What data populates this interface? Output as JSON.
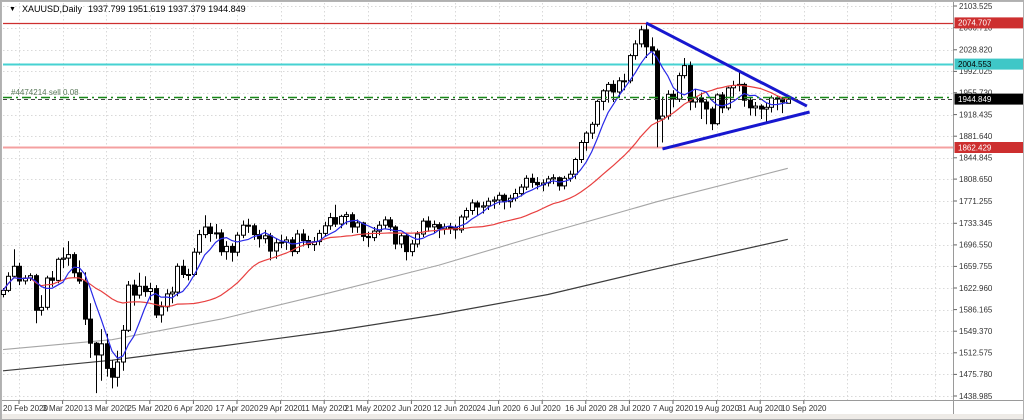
{
  "window": {
    "marker": "▼",
    "symbol_period": "XAUUSD,Daily",
    "ohlc_line": "1937.799 1951.619 1937.379 1944.849"
  },
  "position": {
    "label": "#4474214 sell 0.08",
    "open_price": 1948.0
  },
  "colors": {
    "background": "#ffffff",
    "grid": "#d9d9d9",
    "axis_text": "#333333",
    "frame": "#9a9a9a",
    "bull_fill": "#ffffff",
    "bear_fill": "#000000",
    "candle_outline": "#000000",
    "ma_fast_blue": "#2929e8",
    "ma_mid_red": "#e84040",
    "ma_slow_gray": "#a6a6a6",
    "ma_slowest_black": "#3c3c3c",
    "triangle_blue": "#1717cf",
    "resistance_red": "#cd2f2f",
    "support_pink": "#f4a0a0",
    "cyan_level": "#46d2d2",
    "position_green": "#178717",
    "bid_line": "#444444",
    "badge_black": "#000000",
    "bottom_strip": "#eeebe7"
  },
  "chart_data": {
    "type": "candlestick",
    "title": "XAUUSD Daily with moving averages and symmetrical triangle",
    "symbol": "XAUUSD",
    "timeframe": "Daily",
    "current_bar": {
      "open": 1937.799,
      "high": 1951.619,
      "low": 1937.379,
      "close": 1944.849
    },
    "x_labels": [
      "20 Feb 2020",
      "3 Mar 2020",
      "13 Mar 2020",
      "25 Mar 2020",
      "6 Apr 2020",
      "17 Apr 2020",
      "29 Apr 2020",
      "11 May 2020",
      "21 May 2020",
      "2 Jun 2020",
      "12 Jun 2020",
      "24 Jun 2020",
      "6 Jul 2020",
      "16 Jul 2020",
      "28 Jul 2020",
      "7 Aug 2020",
      "19 Aug 2020",
      "31 Aug 2020",
      "10 Sep 2020"
    ],
    "y_ticks": [
      2103.525,
      2066.71,
      2028.82,
      1992.025,
      1955.73,
      1918.435,
      1881.64,
      1844.845,
      1808.65,
      1771.255,
      1733.345,
      1696.55,
      1659.755,
      1622.96,
      1586.165,
      1549.37,
      1512.575,
      1475.78,
      1438.985
    ],
    "ylim": [
      1438.985,
      2103.525
    ],
    "grid": "dotted",
    "candles": [
      [
        1612,
        1623,
        1607,
        1619
      ],
      [
        1619,
        1650,
        1616,
        1643
      ],
      [
        1643,
        1689,
        1642,
        1660
      ],
      [
        1660,
        1666,
        1628,
        1635
      ],
      [
        1635,
        1645,
        1629,
        1640
      ],
      [
        1640,
        1648,
        1635,
        1644
      ],
      [
        1644,
        1647,
        1563,
        1585
      ],
      [
        1585,
        1611,
        1576,
        1590
      ],
      [
        1590,
        1644,
        1586,
        1640
      ],
      [
        1640,
        1652,
        1625,
        1636
      ],
      [
        1636,
        1675,
        1631,
        1672
      ],
      [
        1672,
        1692,
        1657,
        1674
      ],
      [
        1674,
        1703,
        1661,
        1680
      ],
      [
        1680,
        1684,
        1641,
        1649
      ],
      [
        1649,
        1670,
        1630,
        1635
      ],
      [
        1635,
        1650,
        1560,
        1570
      ],
      [
        1570,
        1597,
        1504,
        1529
      ],
      [
        1529,
        1531,
        1444,
        1509
      ],
      [
        1509,
        1553,
        1465,
        1528
      ],
      [
        1528,
        1545,
        1472,
        1486
      ],
      [
        1486,
        1500,
        1452,
        1471
      ],
      [
        1471,
        1516,
        1455,
        1497
      ],
      [
        1497,
        1560,
        1482,
        1551
      ],
      [
        1551,
        1635,
        1548,
        1628
      ],
      [
        1628,
        1637,
        1593,
        1611
      ],
      [
        1611,
        1649,
        1605,
        1626
      ],
      [
        1626,
        1643,
        1608,
        1617
      ],
      [
        1617,
        1632,
        1602,
        1622
      ],
      [
        1622,
        1628,
        1572,
        1577
      ],
      [
        1577,
        1600,
        1564,
        1591
      ],
      [
        1591,
        1621,
        1583,
        1613
      ],
      [
        1613,
        1625,
        1597,
        1616
      ],
      [
        1616,
        1665,
        1609,
        1660
      ],
      [
        1660,
        1671,
        1640,
        1646
      ],
      [
        1646,
        1656,
        1636,
        1646
      ],
      [
        1646,
        1691,
        1643,
        1684
      ],
      [
        1684,
        1722,
        1680,
        1714
      ],
      [
        1714,
        1747,
        1708,
        1727
      ],
      [
        1727,
        1734,
        1702,
        1716
      ],
      [
        1716,
        1732,
        1707,
        1717
      ],
      [
        1717,
        1723,
        1678,
        1685
      ],
      [
        1685,
        1703,
        1671,
        1694
      ],
      [
        1694,
        1699,
        1668,
        1684
      ],
      [
        1684,
        1718,
        1677,
        1713
      ],
      [
        1713,
        1738,
        1708,
        1730
      ],
      [
        1730,
        1741,
        1717,
        1729
      ],
      [
        1729,
        1733,
        1705,
        1714
      ],
      [
        1714,
        1722,
        1692,
        1707
      ],
      [
        1707,
        1722,
        1699,
        1712
      ],
      [
        1712,
        1717,
        1670,
        1686
      ],
      [
        1686,
        1708,
        1673,
        1700
      ],
      [
        1700,
        1714,
        1691,
        1701
      ],
      [
        1701,
        1711,
        1688,
        1705
      ],
      [
        1705,
        1710,
        1677,
        1685
      ],
      [
        1685,
        1722,
        1681,
        1715
      ],
      [
        1715,
        1723,
        1694,
        1704
      ],
      [
        1704,
        1712,
        1691,
        1697
      ],
      [
        1697,
        1710,
        1686,
        1702
      ],
      [
        1702,
        1722,
        1696,
        1716
      ],
      [
        1716,
        1736,
        1711,
        1729
      ],
      [
        1729,
        1751,
        1722,
        1743
      ],
      [
        1743,
        1765,
        1727,
        1732
      ],
      [
        1732,
        1748,
        1725,
        1745
      ],
      [
        1745,
        1753,
        1731,
        1748
      ],
      [
        1748,
        1752,
        1717,
        1727
      ],
      [
        1727,
        1740,
        1717,
        1734
      ],
      [
        1734,
        1736,
        1703,
        1711
      ],
      [
        1711,
        1719,
        1693,
        1709
      ],
      [
        1709,
        1727,
        1703,
        1720
      ],
      [
        1720,
        1737,
        1713,
        1730
      ],
      [
        1730,
        1745,
        1723,
        1739
      ],
      [
        1739,
        1744,
        1720,
        1727
      ],
      [
        1727,
        1730,
        1689,
        1698
      ],
      [
        1698,
        1717,
        1691,
        1712
      ],
      [
        1712,
        1715,
        1670,
        1685
      ],
      [
        1685,
        1705,
        1677,
        1698
      ],
      [
        1698,
        1720,
        1692,
        1715
      ],
      [
        1715,
        1742,
        1710,
        1737
      ],
      [
        1737,
        1745,
        1719,
        1727
      ],
      [
        1727,
        1738,
        1716,
        1731
      ],
      [
        1731,
        1735,
        1708,
        1724
      ],
      [
        1724,
        1733,
        1714,
        1727
      ],
      [
        1727,
        1734,
        1715,
        1727
      ],
      [
        1727,
        1731,
        1707,
        1722
      ],
      [
        1722,
        1748,
        1717,
        1744
      ],
      [
        1744,
        1760,
        1739,
        1755
      ],
      [
        1755,
        1774,
        1748,
        1768
      ],
      [
        1768,
        1772,
        1747,
        1761
      ],
      [
        1761,
        1770,
        1750,
        1763
      ],
      [
        1763,
        1777,
        1756,
        1771
      ],
      [
        1771,
        1779,
        1758,
        1773
      ],
      [
        1773,
        1786,
        1765,
        1781
      ],
      [
        1781,
        1784,
        1757,
        1770
      ],
      [
        1770,
        1782,
        1760,
        1776
      ],
      [
        1776,
        1792,
        1771,
        1784
      ],
      [
        1784,
        1800,
        1779,
        1795
      ],
      [
        1795,
        1815,
        1790,
        1810
      ],
      [
        1810,
        1818,
        1794,
        1803
      ],
      [
        1803,
        1812,
        1791,
        1799
      ],
      [
        1799,
        1808,
        1788,
        1802
      ],
      [
        1802,
        1814,
        1796,
        1809
      ],
      [
        1809,
        1817,
        1800,
        1811
      ],
      [
        1811,
        1813,
        1789,
        1797
      ],
      [
        1797,
        1814,
        1791,
        1810
      ],
      [
        1810,
        1823,
        1804,
        1817
      ],
      [
        1817,
        1845,
        1809,
        1842
      ],
      [
        1842,
        1875,
        1836,
        1871
      ],
      [
        1871,
        1890,
        1857,
        1887
      ],
      [
        1887,
        1906,
        1877,
        1902
      ],
      [
        1902,
        1944,
        1898,
        1941
      ],
      [
        1941,
        1962,
        1926,
        1959
      ],
      [
        1959,
        1974,
        1939,
        1970
      ],
      [
        1970,
        1977,
        1940,
        1957
      ],
      [
        1957,
        1982,
        1947,
        1976
      ],
      [
        1976,
        1988,
        1960,
        1976
      ],
      [
        1976,
        2022,
        1972,
        2019
      ],
      [
        2019,
        2045,
        2012,
        2039
      ],
      [
        2039,
        2070,
        2033,
        2063
      ],
      [
        2063,
        2075,
        2015,
        2034
      ],
      [
        2034,
        2050,
        2004,
        2027
      ],
      [
        2027,
        2031,
        1863,
        1911
      ],
      [
        1911,
        1949,
        1871,
        1916
      ],
      [
        1916,
        1960,
        1910,
        1953
      ],
      [
        1953,
        1960,
        1931,
        1945
      ],
      [
        1945,
        1990,
        1940,
        1985
      ],
      [
        1985,
        2015,
        1980,
        2002
      ],
      [
        2002,
        2009,
        1926,
        1940
      ],
      [
        1940,
        1962,
        1930,
        1947
      ],
      [
        1947,
        1956,
        1911,
        1940
      ],
      [
        1940,
        1944,
        1902,
        1928
      ],
      [
        1928,
        1932,
        1892,
        1903
      ],
      [
        1903,
        1955,
        1900,
        1952
      ],
      [
        1952,
        1957,
        1921,
        1930
      ],
      [
        1930,
        1966,
        1926,
        1964
      ],
      [
        1964,
        1976,
        1949,
        1968
      ],
      [
        1968,
        1992,
        1958,
        1970
      ],
      [
        1970,
        1973,
        1932,
        1943
      ],
      [
        1943,
        1948,
        1917,
        1930
      ],
      [
        1930,
        1940,
        1916,
        1933
      ],
      [
        1933,
        1936,
        1911,
        1928
      ],
      [
        1928,
        1939,
        1906,
        1931
      ],
      [
        1931,
        1951,
        1922,
        1947
      ],
      [
        1947,
        1950,
        1926,
        1945
      ],
      [
        1945,
        1948,
        1921,
        1940
      ],
      [
        1937.8,
        1951.6,
        1937.4,
        1944.8
      ]
    ],
    "moving_averages": {
      "blue_sma_period": 6,
      "red_sma_period": 25,
      "gray_points": [
        [
          0,
          1518
        ],
        [
          20,
          1535
        ],
        [
          40,
          1570
        ],
        [
          60,
          1615
        ],
        [
          80,
          1662
        ],
        [
          100,
          1717
        ],
        [
          120,
          1770
        ],
        [
          144,
          1827
        ]
      ],
      "black_points": [
        [
          0,
          1482
        ],
        [
          20,
          1500
        ],
        [
          40,
          1524
        ],
        [
          60,
          1549
        ],
        [
          80,
          1578
        ],
        [
          100,
          1612
        ],
        [
          120,
          1656
        ],
        [
          144,
          1706
        ]
      ]
    },
    "levels": [
      {
        "name": "resistance-2074",
        "price": 2074.707,
        "color": "#cd2f2f",
        "width": 1.3,
        "style": "solid"
      },
      {
        "name": "cyan-2004",
        "price": 2004.553,
        "color": "#46d2d2",
        "width": 2,
        "style": "solid"
      },
      {
        "name": "support-1862",
        "price": 1862.429,
        "color": "#f4a0a0",
        "width": 2,
        "style": "solid"
      },
      {
        "name": "position-open",
        "price": 1948.0,
        "color": "#178717",
        "width": 1.4,
        "style": "dashdot"
      },
      {
        "name": "bid-line",
        "price": 1944.849,
        "color": "#444444",
        "width": 1,
        "style": "dash"
      }
    ],
    "badges": [
      {
        "value": "2074.707",
        "price": 2074.707,
        "bg": "#cd2f2f",
        "fg": "#ffffff"
      },
      {
        "value": "2004.553",
        "price": 2004.553,
        "bg": "#3fc7c7",
        "fg": "#000000"
      },
      {
        "value": "1944.849",
        "price": 1944.849,
        "bg": "#000000",
        "fg": "#ffffff"
      },
      {
        "value": "1862.429",
        "price": 1862.429,
        "bg": "#cd2f2f",
        "fg": "#ffffff"
      }
    ],
    "triangle": {
      "color": "#1717cf",
      "width": 3,
      "upper": [
        [
          118,
          2074.7
        ],
        [
          147.5,
          1933.0
        ]
      ],
      "lower": [
        [
          121,
          1860.0
        ],
        [
          148,
          1923.0
        ]
      ]
    },
    "legend_position": "none"
  }
}
